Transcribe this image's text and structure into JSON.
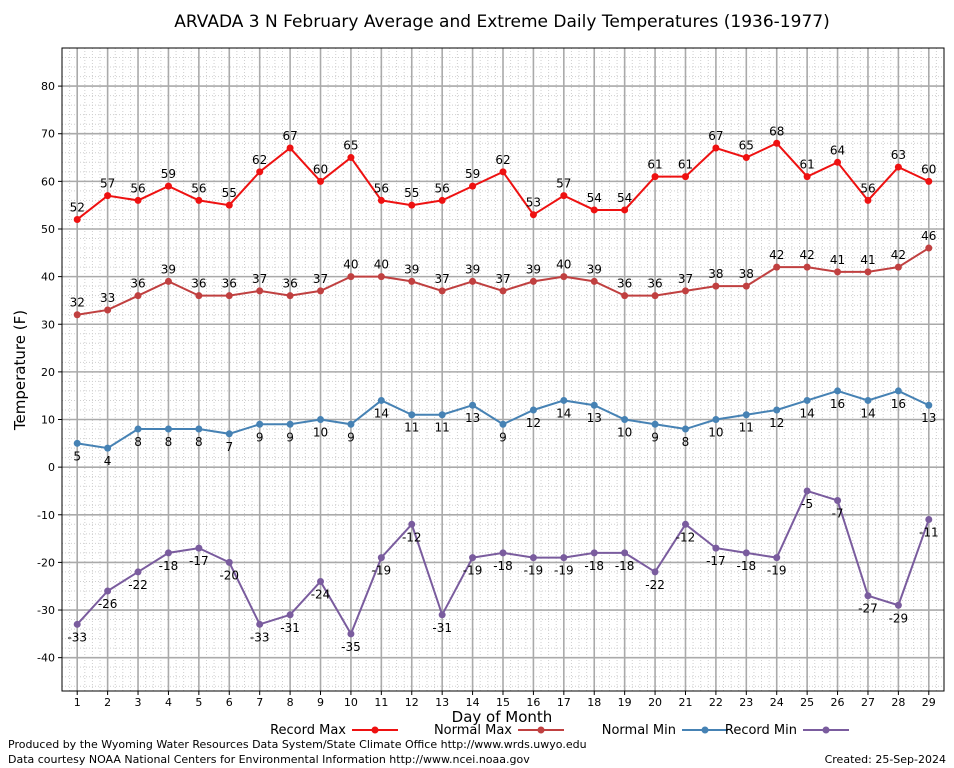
{
  "chart_data": {
    "type": "line",
    "title": "ARVADA 3 N February Average and Extreme Daily Temperatures (1936-1977)",
    "xlabel": "Day of Month",
    "ylabel": "Temperature (F)",
    "x": [
      1,
      2,
      3,
      4,
      5,
      6,
      7,
      8,
      9,
      10,
      11,
      12,
      13,
      14,
      15,
      16,
      17,
      18,
      19,
      20,
      21,
      22,
      23,
      24,
      25,
      26,
      27,
      28,
      29
    ],
    "xlim": [
      0.5,
      29.5
    ],
    "ylim": [
      -47,
      88
    ],
    "yticks": [
      -40,
      -30,
      -20,
      -10,
      0,
      10,
      20,
      30,
      40,
      50,
      60,
      70,
      80
    ],
    "grid": true,
    "legend_position": "bottom",
    "series": [
      {
        "name": "Record Max",
        "color": "#ee1111",
        "label_position": "above",
        "values": [
          52,
          57,
          56,
          59,
          56,
          55,
          62,
          67,
          60,
          65,
          56,
          55,
          56,
          59,
          62,
          53,
          57,
          54,
          54,
          61,
          61,
          67,
          65,
          68,
          61,
          64,
          56,
          63,
          60
        ]
      },
      {
        "name": "Normal Max",
        "color": "#c04040",
        "label_position": "above",
        "values": [
          32,
          33,
          36,
          39,
          36,
          36,
          37,
          36,
          37,
          40,
          40,
          39,
          37,
          39,
          37,
          39,
          40,
          39,
          36,
          36,
          37,
          38,
          38,
          42,
          42,
          41,
          41,
          42,
          46
        ]
      },
      {
        "name": "Normal Min",
        "color": "#4682b4",
        "label_position": "below",
        "values": [
          5,
          4,
          8,
          8,
          8,
          7,
          9,
          9,
          10,
          9,
          14,
          11,
          11,
          13,
          9,
          12,
          14,
          13,
          10,
          9,
          8,
          10,
          11,
          12,
          14,
          16,
          14,
          16,
          13
        ]
      },
      {
        "name": "Record Min",
        "color": "#7a5c9e",
        "label_position": "below",
        "values": [
          -33,
          -26,
          -22,
          -18,
          -17,
          -20,
          -33,
          -31,
          -24,
          -35,
          -19,
          -12,
          -31,
          -19,
          -18,
          -19,
          -19,
          -18,
          -18,
          -22,
          -12,
          -17,
          -18,
          -19,
          -5,
          -7,
          -27,
          -29,
          -11
        ]
      }
    ]
  },
  "footer": {
    "produced_by": "Produced by the Wyoming Water Resources Data System/State Climate Office http://www.wrds.uwyo.edu",
    "courtesy": "Data courtesy NOAA National Centers for Environmental Information http://www.ncei.noaa.gov",
    "created": "Created:  25-Sep-2024"
  }
}
